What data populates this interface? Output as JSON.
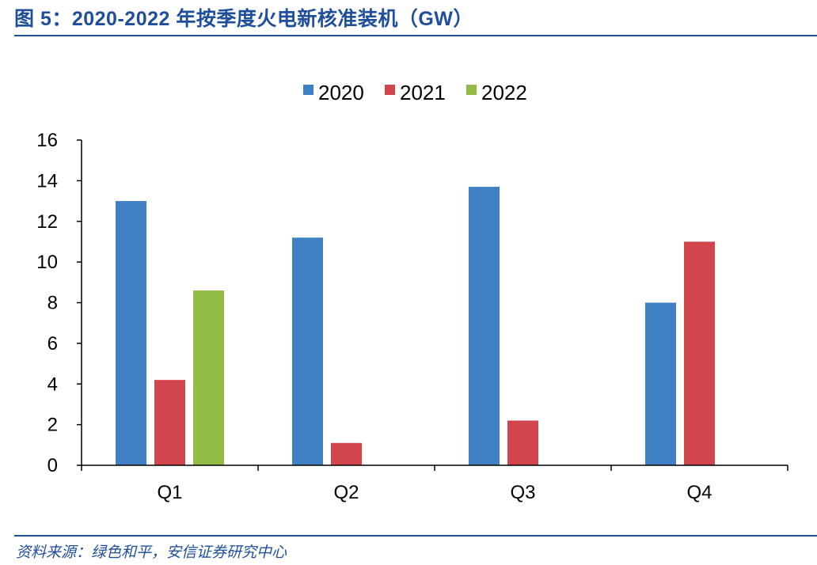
{
  "figure": {
    "title": "图 5：2020-2022 年按季度火电新核准装机（GW）",
    "source": "资料来源：绿色和平，安信证券研究中心"
  },
  "colors": {
    "accent": "#1f4e9a",
    "series": [
      "#3f7fc3",
      "#d1464c",
      "#93bc46"
    ]
  },
  "chart_data": {
    "type": "bar",
    "title": "2020-2022 年按季度火电新核准装机（GW）",
    "xlabel": "",
    "ylabel": "",
    "categories": [
      "Q1",
      "Q2",
      "Q3",
      "Q4"
    ],
    "series": [
      {
        "name": "2020",
        "values": [
          13.0,
          11.2,
          13.7,
          8.0
        ]
      },
      {
        "name": "2021",
        "values": [
          4.2,
          1.1,
          2.2,
          11.0
        ]
      },
      {
        "name": "2022",
        "values": [
          8.6,
          null,
          null,
          null
        ]
      }
    ],
    "ylim": [
      0,
      16
    ],
    "yticks": [
      0,
      2,
      4,
      6,
      8,
      10,
      12,
      14,
      16
    ],
    "grid": false,
    "legend_position": "top-center"
  }
}
